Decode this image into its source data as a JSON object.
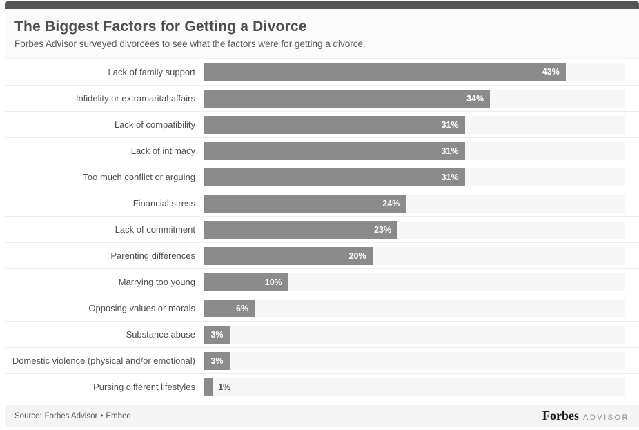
{
  "accent_color": "#565656",
  "header": {
    "title": "The Biggest Factors for Getting a Divorce",
    "subtitle": "Forbes Advisor surveyed divorcees to see what the factors were for getting a divorce."
  },
  "chart_data": {
    "type": "bar",
    "orientation": "horizontal",
    "title": "The Biggest Factors for Getting a Divorce",
    "categories": [
      "Lack of family support",
      "Infidelity or extramarital affairs",
      "Lack of compatibility",
      "Lack of intimacy",
      "Too much conflict or arguing",
      "Financial stress",
      "Lack of commitment",
      "Parenting differences",
      "Marrying too young",
      "Opposing values or morals",
      "Substance abuse",
      "Domestic violence (physical and/or emotional)",
      "Pursing different lifestyles"
    ],
    "values": [
      43,
      34,
      31,
      31,
      31,
      24,
      23,
      20,
      10,
      6,
      3,
      3,
      1
    ],
    "value_suffix": "%",
    "xlim": [
      0,
      50
    ],
    "grid": false,
    "legend": "none",
    "bar_color": "#8b8b8b",
    "track_color": "#f7f7f7",
    "inside_label_color": "#ffffff",
    "outside_label_color": "#4e4e4e"
  },
  "footer": {
    "source_prefix": "Source:",
    "source_name": "Forbes Advisor",
    "bullet": "•",
    "embed_label": "Embed",
    "brand_serif": "Forbes",
    "brand_suffix": "ADVISOR"
  }
}
